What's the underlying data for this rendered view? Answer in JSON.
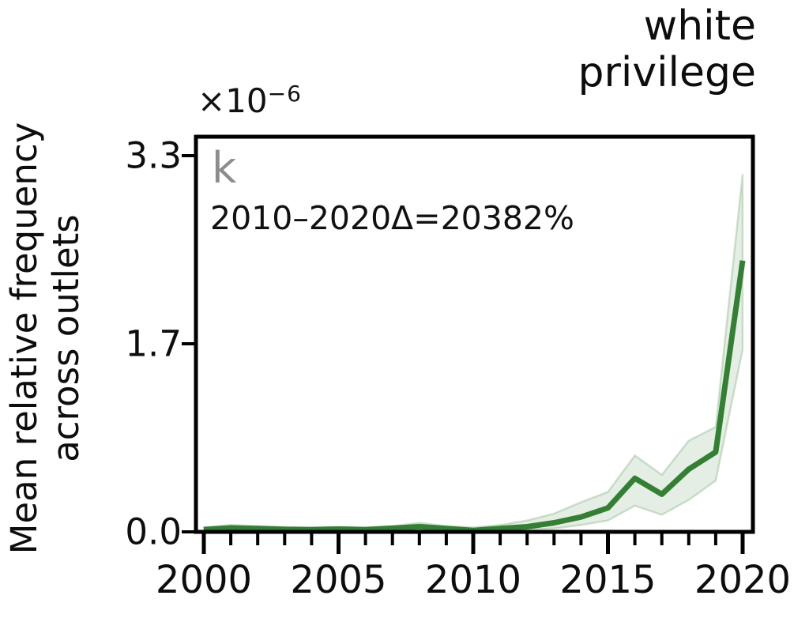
{
  "figure": {
    "title_lines": [
      "white",
      "privilege"
    ],
    "panel_label": "k",
    "annotation": "2010–2020Δ=20382%",
    "y_axis": {
      "label_line1": "Mean relative frequency",
      "label_line2": "across outlets",
      "offset_base": "×10",
      "offset_exponent": "−6",
      "ticks": [
        {
          "label": "3.3",
          "value": 3.3
        },
        {
          "label": "1.7",
          "value": 1.65
        },
        {
          "label": "0.0",
          "value": 0.0
        }
      ]
    },
    "x_axis": {
      "major_tick_labels": [
        "2000",
        "2005",
        "2010",
        "2015",
        "2020"
      ],
      "major_tick_years": [
        2000,
        2005,
        2010,
        2015,
        2020
      ]
    }
  },
  "chart_data": {
    "type": "line",
    "title": "white privilege",
    "xlabel": "",
    "ylabel": "Mean relative frequency across outlets",
    "y_scale_factor": "1e-6",
    "xlim": [
      1999.7,
      2020.4
    ],
    "ylim": [
      0,
      3.47
    ],
    "grid": false,
    "legend": "none",
    "annotation": "2010–2020Δ=20382%",
    "panel_label": "k",
    "x": [
      2000,
      2001,
      2002,
      2003,
      2004,
      2005,
      2006,
      2007,
      2008,
      2009,
      2010,
      2011,
      2012,
      2013,
      2014,
      2015,
      2016,
      2017,
      2018,
      2019,
      2020
    ],
    "series": [
      {
        "name": "mean relative frequency",
        "values": [
          0.02,
          0.035,
          0.03,
          0.022,
          0.02,
          0.025,
          0.02,
          0.032,
          0.045,
          0.03,
          0.0116,
          0.03,
          0.045,
          0.08,
          0.13,
          0.21,
          0.47,
          0.33,
          0.55,
          0.7,
          2.38
        ]
      },
      {
        "name": "ci_lower",
        "values": [
          0.01,
          0.02,
          0.015,
          0.012,
          0.01,
          0.012,
          0.01,
          0.015,
          0.02,
          0.015,
          0.005,
          0.015,
          0.02,
          0.03,
          0.06,
          0.1,
          0.23,
          0.15,
          0.28,
          0.45,
          1.6
        ]
      },
      {
        "name": "ci_upper",
        "values": [
          0.04,
          0.06,
          0.05,
          0.04,
          0.035,
          0.04,
          0.035,
          0.05,
          0.08,
          0.05,
          0.04,
          0.06,
          0.1,
          0.16,
          0.26,
          0.35,
          0.67,
          0.5,
          0.8,
          0.92,
          3.14
        ]
      }
    ],
    "colors": {
      "line": "#357f35",
      "band_fill": "#357f35",
      "axes": "#000000"
    }
  }
}
